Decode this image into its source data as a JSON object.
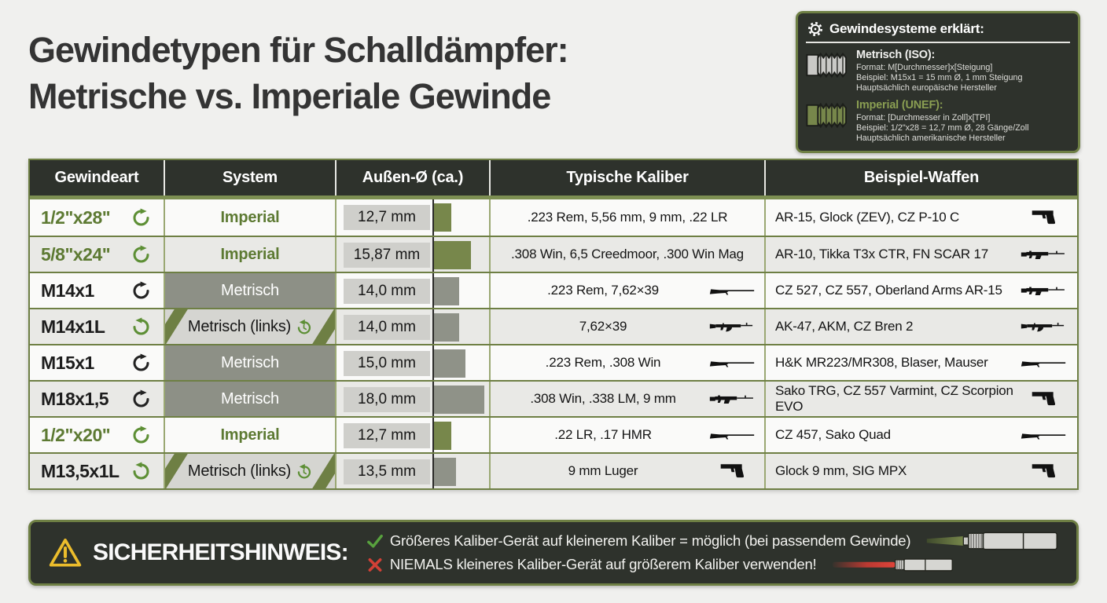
{
  "title": {
    "line1": "Gewindetypen für Schalldämpfer:",
    "line2": "Metrische vs. Imperiale Gewinde"
  },
  "legend": {
    "title": "Gewindesysteme erklärt:",
    "header_icon": "gear-icon",
    "sections": [
      {
        "heading": "Metrisch (ISO):",
        "line1": "Format: M[Durchmesser]x[Steigung]",
        "line2": "Beispiel: M15x1 = 15 mm Ø, 1 mm Steigung",
        "line3": "Hauptsächlich europäische Hersteller",
        "icon": "metric-thread-icon"
      },
      {
        "heading": "Imperial (UNEF):",
        "line1": "Format: [Durchmesser in Zoll]x[TPI]",
        "line2": "Beispiel: 1/2\"x28 = 12,7 mm Ø, 28 Gänge/Zoll",
        "line3": "Hauptsächlich amerikanische Hersteller",
        "icon": "imperial-thread-icon"
      }
    ]
  },
  "table": {
    "headers": [
      "Gewindeart",
      "System",
      "Außen-Ø (ca.)",
      "Typische Kaliber",
      "Beispiel-Waffen"
    ],
    "rows": [
      {
        "thread": "1/2\"x28\"",
        "thread_color": "green",
        "rotation": "cw",
        "rotation_color": "green",
        "system": "Imperial",
        "system_type": "imperial",
        "diameter_label": "12,7 mm",
        "diameter_mm": 12.7,
        "calibers": ".223 Rem, 5,56 mm, 9 mm, .22 LR",
        "caliber_icon": "",
        "weapons": "AR-15, Glock (ZEV), CZ P-10 C",
        "weapon_icon": "pistol"
      },
      {
        "thread": "5/8\"x24\"",
        "thread_color": "green",
        "rotation": "cw",
        "rotation_color": "green",
        "system": "Imperial",
        "system_type": "imperial",
        "diameter_label": "15,87 mm",
        "diameter_mm": 15.87,
        "calibers": ".308 Win, 6,5 Creedmoor, .300 Win Mag",
        "caliber_icon": "",
        "weapons": "AR-10, Tikka T3x CTR, FN SCAR 17",
        "weapon_icon": "battle-rifle"
      },
      {
        "thread": "M14x1",
        "thread_color": "black",
        "rotation": "cw",
        "rotation_color": "black",
        "system": "Metrisch",
        "system_type": "metric",
        "diameter_label": "14,0 mm",
        "diameter_mm": 14.0,
        "calibers": ".223 Rem, 7,62×39",
        "caliber_icon": "bolt-rifle",
        "weapons": "CZ 527, CZ 557, Oberland Arms AR-15",
        "weapon_icon": "battle-rifle"
      },
      {
        "thread": "M14x1L",
        "thread_color": "black",
        "rotation": "ccw",
        "rotation_color": "green",
        "system": "Metrisch (links)",
        "system_type": "metric-links",
        "diameter_label": "14,0 mm",
        "diameter_mm": 14.0,
        "calibers": "7,62×39",
        "caliber_icon": "ak-rifle",
        "weapons": "AK-47, AKM, CZ Bren 2",
        "weapon_icon": "ak-rifle"
      },
      {
        "thread": "M15x1",
        "thread_color": "black",
        "rotation": "cw",
        "rotation_color": "black",
        "system": "Metrisch",
        "system_type": "metric",
        "diameter_label": "15,0 mm",
        "diameter_mm": 15.0,
        "calibers": ".223 Rem, .308 Win",
        "caliber_icon": "bolt-rifle",
        "weapons": "H&K MR223/MR308, Blaser, Mauser",
        "weapon_icon": "bolt-rifle"
      },
      {
        "thread": "M18x1,5",
        "thread_color": "black",
        "rotation": "cw",
        "rotation_color": "black",
        "system": "Metrisch",
        "system_type": "metric",
        "diameter_label": "18,0 mm",
        "diameter_mm": 18.0,
        "calibers": ".308 Win, .338 LM, 9 mm",
        "caliber_icon": "battle-rifle",
        "weapons": "Sako TRG, CZ 557 Varmint, CZ Scorpion EVO",
        "weapon_icon": "pistol"
      },
      {
        "thread": "1/2\"x20\"",
        "thread_color": "green",
        "rotation": "cw",
        "rotation_color": "green",
        "system": "Imperial",
        "system_type": "imperial",
        "diameter_label": "12,7 mm",
        "diameter_mm": 12.7,
        "calibers": ".22 LR, .17 HMR",
        "caliber_icon": "bolt-rifle",
        "weapons": "CZ 457, Sako Quad",
        "weapon_icon": "bolt-rifle"
      },
      {
        "thread": "M13,5x1L",
        "thread_color": "black",
        "rotation": "ccw",
        "rotation_color": "green",
        "system": "Metrisch (links)",
        "system_type": "metric-links",
        "diameter_label": "13,5 mm",
        "diameter_mm": 13.5,
        "calibers": "9 mm Luger",
        "caliber_icon": "pistol",
        "weapons": "Glock 9 mm, SIG MPX",
        "weapon_icon": "pistol"
      }
    ]
  },
  "safety": {
    "icon": "warning-triangle-icon",
    "title": "SICHERHEITSHINWEIS:",
    "lines": [
      {
        "icon": "check-icon",
        "text": "Größeres Kaliber-Gerät auf kleinerem Kaliber = möglich (bei passendem Gewinde)",
        "illustration": "suppressor-ok-illustration"
      },
      {
        "icon": "cross-icon",
        "text": "NIEMALS kleineres Kaliber-Gerät auf größerem Kaliber verwenden!",
        "illustration": "suppressor-danger-illustration"
      }
    ]
  },
  "colors": {
    "olive_accent": "#6e7f44",
    "dark_panel": "#2e322c",
    "imperial_text_green": "#5d7a33",
    "metric_cell_gray": "#8d9086",
    "bar_green": "#77874b",
    "bar_gray": "#8f9288",
    "warning_yellow": "#ecbd2c",
    "check_green": "#58a23e",
    "cross_red": "#d24036",
    "page_background": "#f0f0ee"
  }
}
